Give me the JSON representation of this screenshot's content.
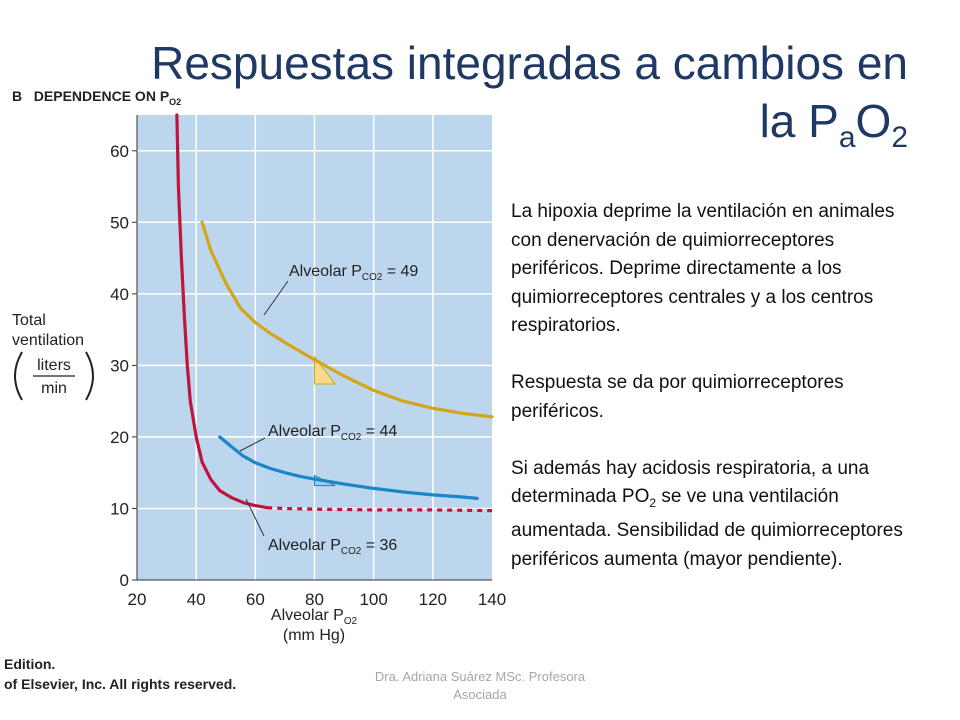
{
  "title": {
    "main": "Respuestas integradas a cambios en",
    "line2": "la P",
    "sub_a": "a",
    "o": "O",
    "sub_2": "2"
  },
  "figure_label": {
    "letter": "B",
    "text": "DEPENDENCE ON P",
    "sub": "O2"
  },
  "paragraphs": [
    {
      "text": "La hipoxia deprime la ventilación en animales con denervación de quimiorreceptores periféricos. Deprime directamente a los quimiorreceptores centrales y a los centros respiratorios."
    },
    {
      "text": "Respuesta se da por quimiorreceptores periféricos."
    },
    {
      "before": "Si además hay acidosis respiratoria, a una determinada PO",
      "sub": "2",
      "after": " se ve una ventilación aumentada.  Sensibilidad de quimiorreceptores periféricos aumenta (mayor pendiente)."
    }
  ],
  "copyright": {
    "line1": "Edition.",
    "line2": "of Elsevier, Inc. All rights reserved."
  },
  "footer": {
    "line1": "Dra. Adriana Suárez MSc. Profesora",
    "line2": "Asociada"
  },
  "chart_data": {
    "type": "line",
    "title": "DEPENDENCE ON PO2",
    "ylabel": {
      "line1": "Total",
      "line2": "ventilation",
      "numerator": "liters",
      "denominator": "min"
    },
    "xlabel": {
      "line1_pre": "Alveolar P",
      "line1_sub": "O2",
      "line2": "(mm Hg)"
    },
    "xlim": [
      20,
      140
    ],
    "ylim": [
      0,
      65
    ],
    "xticks": [
      20,
      40,
      60,
      80,
      100,
      120,
      140
    ],
    "yticks": [
      0,
      10,
      20,
      30,
      40,
      50,
      60
    ],
    "grid": true,
    "background": "#bcd6ee",
    "series": [
      {
        "name": "Alveolar PCO2 = 36",
        "label_pre": "Alveolar P",
        "label_sub": "CO2",
        "label_post": " = 36",
        "color": "#c0143c",
        "points": [
          [
            33.5,
            65
          ],
          [
            34,
            55
          ],
          [
            35,
            45
          ],
          [
            36,
            37
          ],
          [
            37,
            30
          ],
          [
            38,
            25
          ],
          [
            40,
            20
          ],
          [
            42,
            16.5
          ],
          [
            45,
            14
          ],
          [
            48,
            12.5
          ],
          [
            52,
            11.5
          ],
          [
            56,
            10.8
          ],
          [
            60,
            10.4
          ],
          [
            64,
            10.1
          ]
        ],
        "dashed": [
          [
            64,
            10.1
          ],
          [
            70,
            10
          ],
          [
            80,
            9.9
          ],
          [
            100,
            9.8
          ],
          [
            120,
            9.8
          ],
          [
            140,
            9.7
          ]
        ]
      },
      {
        "name": "Alveolar PCO2 = 44",
        "label_pre": "Alveolar P",
        "label_sub": "CO2",
        "label_post": " = 44",
        "color": "#1a85c8",
        "points": [
          [
            48,
            20
          ],
          [
            52,
            18.6
          ],
          [
            56,
            17.3
          ],
          [
            60,
            16.4
          ],
          [
            65,
            15.6
          ],
          [
            70,
            15
          ],
          [
            75,
            14.5
          ],
          [
            80,
            14.1
          ],
          [
            90,
            13.4
          ],
          [
            100,
            12.8
          ],
          [
            110,
            12.3
          ],
          [
            120,
            11.9
          ],
          [
            130,
            11.6
          ],
          [
            135,
            11.4
          ]
        ]
      },
      {
        "name": "Alveolar PCO2 = 49",
        "label_pre": "Alveolar P",
        "label_sub": "CO2",
        "label_post": " = 49",
        "color": "#d4a516",
        "points": [
          [
            42,
            50
          ],
          [
            45,
            46
          ],
          [
            50,
            41.5
          ],
          [
            55,
            38
          ],
          [
            60,
            36
          ],
          [
            65,
            34.5
          ],
          [
            70,
            33.2
          ],
          [
            75,
            32
          ],
          [
            80,
            30.8
          ],
          [
            90,
            28.5
          ],
          [
            100,
            26.5
          ],
          [
            110,
            25
          ],
          [
            120,
            24
          ],
          [
            130,
            23.3
          ],
          [
            140,
            22.8
          ]
        ]
      }
    ],
    "slope_triangles": [
      {
        "color": "#f5da8e",
        "stroke": "#d4a516",
        "points": [
          [
            80,
            31.2
          ],
          [
            80,
            27.4
          ],
          [
            87,
            27.4
          ]
        ]
      },
      {
        "color": "#9fcdec",
        "stroke": "#1a85c8",
        "points": [
          [
            80,
            14.6
          ],
          [
            80,
            13.2
          ],
          [
            87,
            13.2
          ]
        ]
      }
    ]
  }
}
